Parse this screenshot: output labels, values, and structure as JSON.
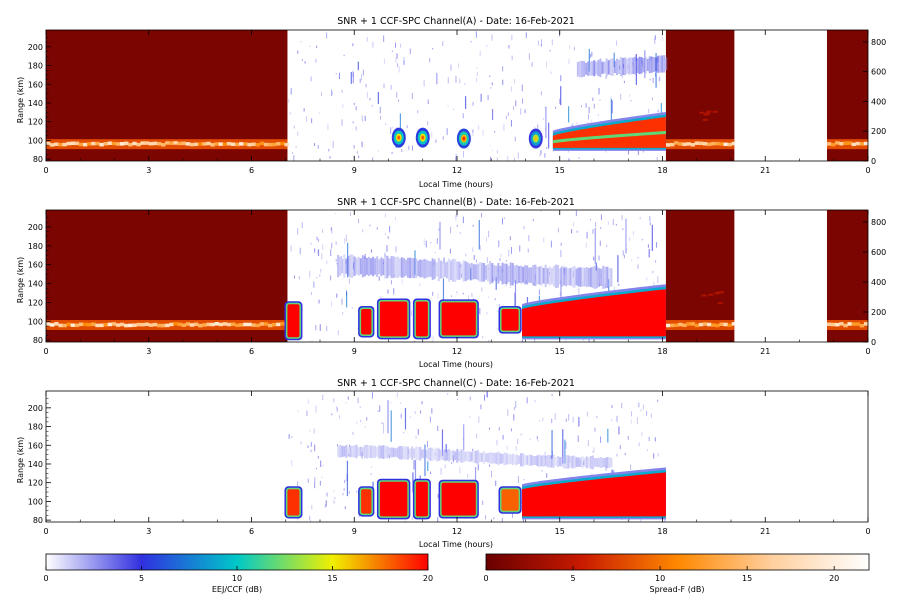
{
  "chart_data": [
    {
      "type": "heatmap",
      "title": "SNR + 1 CCF-SPC Channel(A) - Date: 16-Feb-2021",
      "xlabel": "Local Time (hours)",
      "ylabel": "Range (km)",
      "xlim": [
        0,
        24
      ],
      "ylim": [
        78,
        218
      ],
      "xticks": [
        "0",
        "3",
        "6",
        "9",
        "12",
        "15",
        "18",
        "21",
        "0"
      ],
      "yticks": [
        "80",
        "100",
        "120",
        "140",
        "160",
        "180",
        "200"
      ],
      "right_axis_ticks": [
        "0",
        "200",
        "400",
        "600",
        "800"
      ],
      "right_axis_range": [
        0,
        880
      ],
      "spread_f_intervals": [
        [
          0,
          7.05
        ],
        [
          18.1,
          20.1
        ],
        [
          22.8,
          24
        ]
      ],
      "spread_f_layer": {
        "range_km": [
          94,
          98
        ],
        "peak_db": 20
      },
      "blank_interval": [
        20.1,
        22.8
      ],
      "eej_interval": [
        7.05,
        18.1
      ],
      "eej_blobs": [
        {
          "t": 10.3,
          "range_km": 103,
          "peak_db": 18
        },
        {
          "t": 11.0,
          "range_km": 103,
          "peak_db": 18
        },
        {
          "t": 12.2,
          "range_km": 102,
          "peak_db": 19
        },
        {
          "t": 14.3,
          "range_km": 102,
          "peak_db": 16
        }
      ],
      "eej_wedge": {
        "t_start": 14.8,
        "t_end": 18.1,
        "bottom_km": 92,
        "top_start_km": 105,
        "top_end_km": 125,
        "peak_db": 19
      },
      "upper_layer": {
        "t_start": 15.5,
        "t_end": 18.1,
        "range_km": [
          170,
          190
        ],
        "peak_db": 5
      }
    },
    {
      "type": "heatmap",
      "title": "SNR + 1 CCF-SPC Channel(B) - Date: 16-Feb-2021",
      "xlabel": "Local Time (hours)",
      "ylabel": "Range (km)",
      "xlim": [
        0,
        24
      ],
      "ylim": [
        78,
        218
      ],
      "xticks": [
        "0",
        "3",
        "6",
        "9",
        "12",
        "15",
        "18",
        "21",
        "0"
      ],
      "yticks": [
        "80",
        "100",
        "120",
        "140",
        "160",
        "180",
        "200"
      ],
      "right_axis_ticks": [
        "0",
        "200",
        "400",
        "600",
        "800"
      ],
      "right_axis_range": [
        0,
        880
      ],
      "spread_f_intervals": [
        [
          0,
          7.05
        ],
        [
          18.1,
          20.1
        ],
        [
          22.8,
          24
        ]
      ],
      "spread_f_layer": {
        "range_km": [
          94,
          98
        ],
        "peak_db": 20
      },
      "blank_interval": [
        20.1,
        22.8
      ],
      "eej_interval": [
        7.05,
        18.1
      ],
      "eej_blocks": [
        {
          "t": [
            7.05,
            7.4
          ],
          "range_km": [
            83,
            118
          ],
          "level_db": 20
        },
        {
          "t": [
            9.2,
            9.5
          ],
          "range_km": [
            86,
            113
          ],
          "level_db": 20
        },
        {
          "t": [
            9.75,
            10.55
          ],
          "range_km": [
            84,
            121
          ],
          "level_db": 20
        },
        {
          "t": [
            10.8,
            11.15
          ],
          "range_km": [
            84,
            121
          ],
          "level_db": 20
        },
        {
          "t": [
            11.55,
            12.55
          ],
          "range_km": [
            85,
            120
          ],
          "level_db": 20
        },
        {
          "t": [
            13.3,
            13.8
          ],
          "range_km": [
            90,
            113
          ],
          "level_db": 20
        }
      ],
      "eej_wedge": {
        "t_start": 13.9,
        "t_end": 18.1,
        "bottom_km": 84,
        "top_start_km": 113,
        "top_end_km": 134,
        "peak_db": 20
      },
      "upper_layer": {
        "t_start": 8.5,
        "t_end": 16.5,
        "range_km": [
          140,
          165
        ],
        "peak_db": 4
      }
    },
    {
      "type": "heatmap",
      "title": "SNR + 1 CCF-SPC Channel(C) - Date: 16-Feb-2021",
      "xlabel": "Local Time (hours)",
      "ylabel": "Range (km)",
      "xlim": [
        0,
        24
      ],
      "ylim": [
        78,
        218
      ],
      "xticks": [
        "0",
        "3",
        "6",
        "9",
        "12",
        "15",
        "18",
        "21",
        "0"
      ],
      "yticks": [
        "80",
        "100",
        "120",
        "140",
        "160",
        "180",
        "200"
      ],
      "eej_interval": [
        7.05,
        18.1
      ],
      "eej_blocks": [
        {
          "t": [
            7.05,
            7.4
          ],
          "range_km": [
            85,
            113
          ],
          "level_db": 19
        },
        {
          "t": [
            9.2,
            9.5
          ],
          "range_km": [
            87,
            113
          ],
          "level_db": 19
        },
        {
          "t": [
            9.75,
            10.55
          ],
          "range_km": [
            84,
            121
          ],
          "level_db": 20
        },
        {
          "t": [
            10.8,
            11.15
          ],
          "range_km": [
            84,
            121
          ],
          "level_db": 20
        },
        {
          "t": [
            11.55,
            12.55
          ],
          "range_km": [
            85,
            120
          ],
          "level_db": 20
        },
        {
          "t": [
            13.3,
            13.8
          ],
          "range_km": [
            90,
            113
          ],
          "level_db": 18
        }
      ],
      "eej_wedge": {
        "t_start": 13.9,
        "t_end": 18.1,
        "bottom_km": 84,
        "top_start_km": 113,
        "top_end_km": 131,
        "peak_db": 20
      },
      "upper_layer": {
        "t_start": 8.5,
        "t_end": 16.5,
        "range_km": [
          140,
          155
        ],
        "peak_db": 3
      }
    }
  ],
  "colorbars": [
    {
      "label": "EEJ/CCF (dB)",
      "min": 0,
      "max": 20,
      "ticks": [
        "0",
        "5",
        "10",
        "15",
        "20"
      ],
      "colors": [
        "#ffffff",
        "#3030e0",
        "#00c8c8",
        "#f0f000",
        "#ff0000"
      ]
    },
    {
      "label": "Spread-F (dB)",
      "min": 0,
      "max": 22,
      "ticks": [
        "0",
        "5",
        "10",
        "15",
        "20"
      ],
      "colors": [
        "#6a0000",
        "#c81a00",
        "#ff8800",
        "#ffd0a0",
        "#ffffff"
      ]
    }
  ]
}
